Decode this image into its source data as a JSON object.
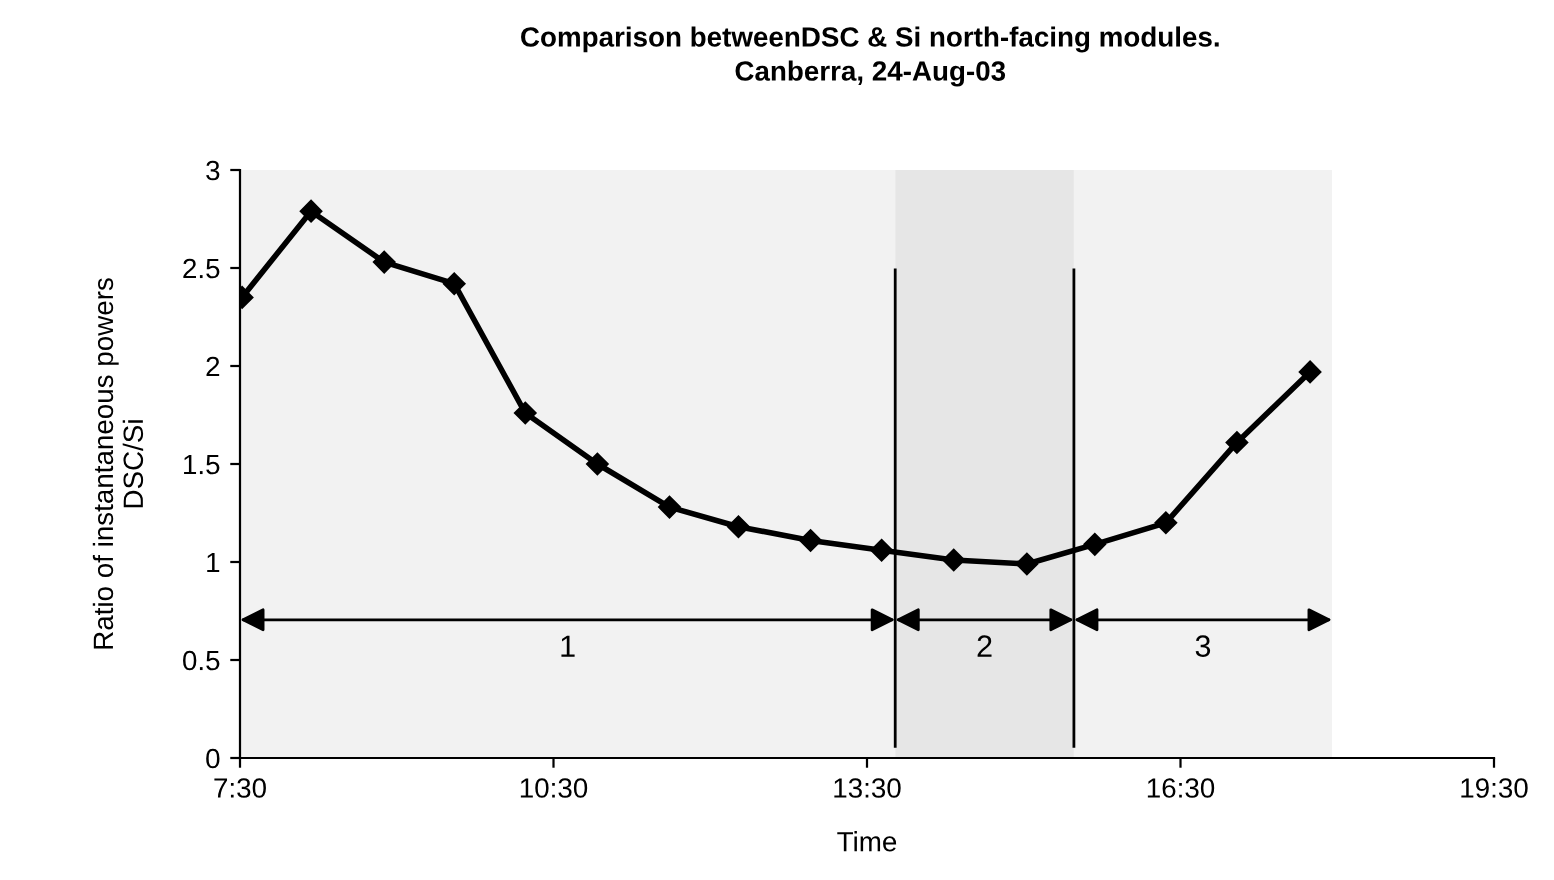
{
  "chart_data": {
    "type": "line",
    "title": "Comparison betweenDSC & Si north-facing modules.\nCanberra, 24-Aug-03",
    "xlabel": "Time",
    "ylabel": "Ratio of instantaneous powers\nDSC/Si",
    "x": [
      7.52,
      8.18,
      8.88,
      9.55,
      10.23,
      10.92,
      11.61,
      12.27,
      12.96,
      13.64,
      14.33,
      15.03,
      15.68,
      16.36,
      17.04,
      17.74
    ],
    "series": [
      {
        "color": "#000000",
        "values": [
          2.35,
          2.79,
          2.53,
          2.42,
          1.76,
          1.5,
          1.28,
          1.18,
          1.11,
          1.06,
          1.01,
          0.99,
          1.09,
          1.2,
          1.61,
          1.97
        ]
      }
    ],
    "marker": "diamond",
    "line_style": "solid",
    "grid": false,
    "legend": false,
    "xlim": [
      7.5,
      19.5
    ],
    "xticks": [
      {
        "value": 7.5,
        "label": "7:30"
      },
      {
        "value": 10.5,
        "label": "10:30"
      },
      {
        "value": 13.5,
        "label": "13:30"
      },
      {
        "value": 16.5,
        "label": "16:30"
      },
      {
        "value": 19.5,
        "label": "19:30"
      }
    ],
    "ylim": [
      0,
      3
    ],
    "yticks": [
      0,
      0.5,
      1,
      1.5,
      2,
      2.5,
      3
    ],
    "ref_lines": [
      {
        "axis": "x",
        "value": 13.77,
        "color": "#000000"
      },
      {
        "axis": "x",
        "value": 15.48,
        "color": "#000000"
      }
    ],
    "bands": [
      {
        "axis": "x",
        "from": 7.5,
        "to": 13.77,
        "label": "1",
        "color": "#f2f2f2"
      },
      {
        "axis": "x",
        "from": 13.77,
        "to": 15.48,
        "label": "2",
        "color": "#e6e6e6"
      },
      {
        "axis": "x",
        "from": 15.48,
        "to": 17.95,
        "label": "3",
        "color": "#f2f2f2"
      }
    ]
  }
}
